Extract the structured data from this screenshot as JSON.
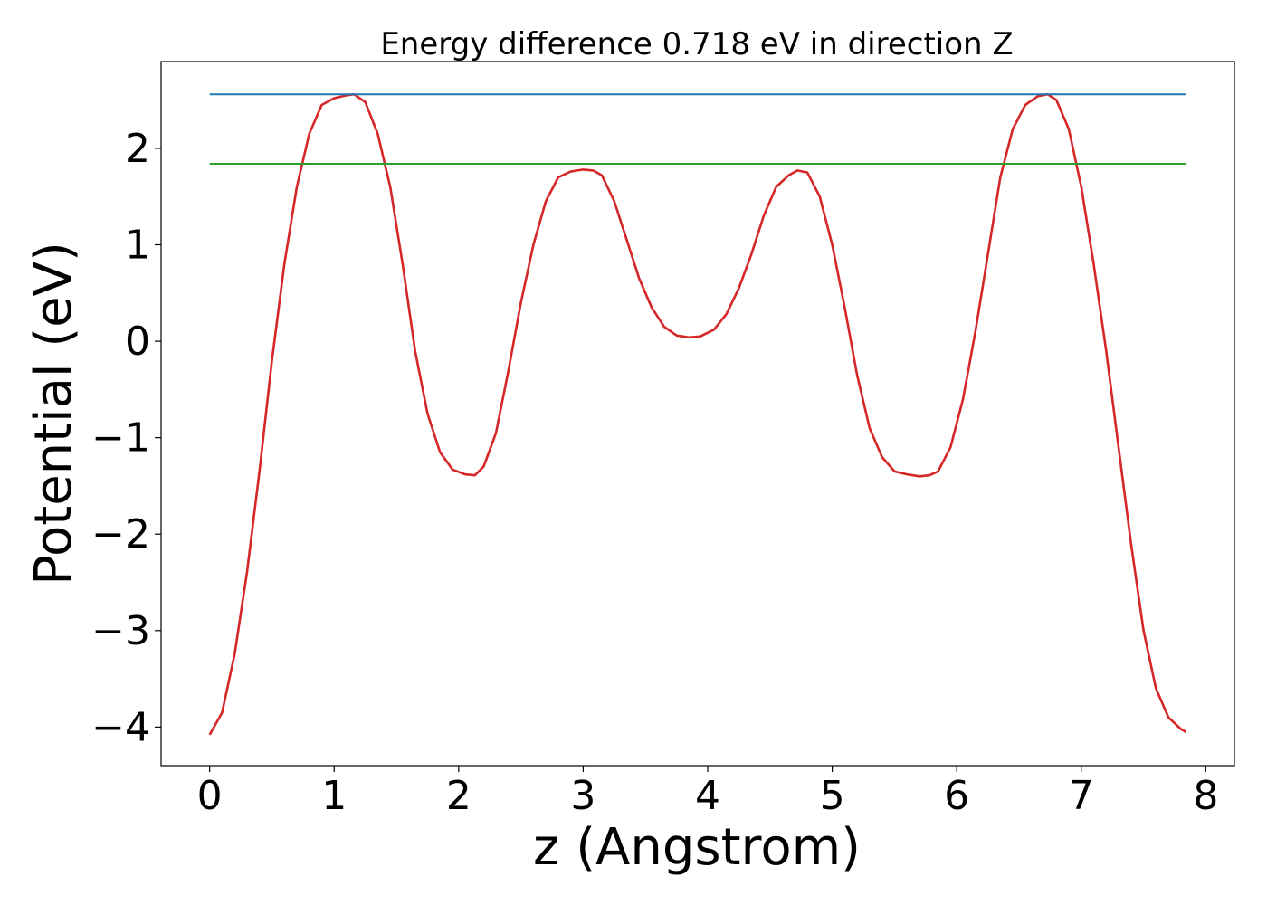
{
  "chart_data": {
    "type": "line",
    "title": "Energy difference 0.718 eV in direction Z",
    "xlabel": "z (Angstrom)",
    "ylabel": "Potential (eV)",
    "xlim": [
      -0.39,
      8.23
    ],
    "ylim": [
      -4.4,
      2.9
    ],
    "xticks": [
      0,
      1,
      2,
      3,
      4,
      5,
      6,
      7,
      8
    ],
    "yticks": [
      -4,
      -3,
      -2,
      -1,
      0,
      1,
      2
    ],
    "ytick_labels": [
      "−4",
      "−3",
      "−2",
      "−1",
      "0",
      "1",
      "2"
    ],
    "grid": false,
    "legend": "none",
    "series": [
      {
        "color": "#d62728",
        "x": [
          0.0,
          0.1,
          0.2,
          0.3,
          0.4,
          0.5,
          0.6,
          0.7,
          0.8,
          0.9,
          1.0,
          1.1,
          1.16,
          1.25,
          1.35,
          1.45,
          1.55,
          1.65,
          1.75,
          1.85,
          1.95,
          2.05,
          2.13,
          2.2,
          2.3,
          2.4,
          2.5,
          2.6,
          2.7,
          2.8,
          2.9,
          3.0,
          3.08,
          3.15,
          3.25,
          3.35,
          3.45,
          3.55,
          3.65,
          3.75,
          3.85,
          3.94,
          4.05,
          4.15,
          4.25,
          4.35,
          4.45,
          4.55,
          4.65,
          4.72,
          4.8,
          4.9,
          5.0,
          5.1,
          5.2,
          5.3,
          5.4,
          5.5,
          5.6,
          5.7,
          5.78,
          5.85,
          5.95,
          6.05,
          6.15,
          6.25,
          6.35,
          6.45,
          6.55,
          6.65,
          6.73,
          6.8,
          6.9,
          7.0,
          7.1,
          7.2,
          7.3,
          7.4,
          7.5,
          7.6,
          7.7,
          7.8,
          7.84
        ],
        "y": [
          -4.08,
          -3.85,
          -3.25,
          -2.4,
          -1.35,
          -0.2,
          0.8,
          1.6,
          2.15,
          2.45,
          2.52,
          2.55,
          2.56,
          2.48,
          2.15,
          1.6,
          0.8,
          -0.1,
          -0.75,
          -1.15,
          -1.33,
          -1.38,
          -1.39,
          -1.3,
          -0.95,
          -0.3,
          0.4,
          1.0,
          1.45,
          1.7,
          1.76,
          1.78,
          1.77,
          1.72,
          1.45,
          1.05,
          0.65,
          0.35,
          0.15,
          0.06,
          0.04,
          0.05,
          0.12,
          0.28,
          0.55,
          0.9,
          1.3,
          1.6,
          1.72,
          1.77,
          1.75,
          1.5,
          1.0,
          0.35,
          -0.35,
          -0.9,
          -1.2,
          -1.35,
          -1.38,
          -1.4,
          -1.39,
          -1.35,
          -1.1,
          -0.6,
          0.1,
          0.9,
          1.7,
          2.2,
          2.45,
          2.54,
          2.56,
          2.5,
          2.2,
          1.6,
          0.8,
          -0.1,
          -1.1,
          -2.1,
          -3.0,
          -3.6,
          -3.9,
          -4.02,
          -4.05
        ]
      },
      {
        "color": "#1f77b4",
        "x": [
          0.0,
          7.84
        ],
        "y": [
          2.56,
          2.56
        ]
      },
      {
        "color": "#2ca02c",
        "x": [
          0.0,
          7.84
        ],
        "y": [
          1.84,
          1.84
        ]
      }
    ]
  }
}
